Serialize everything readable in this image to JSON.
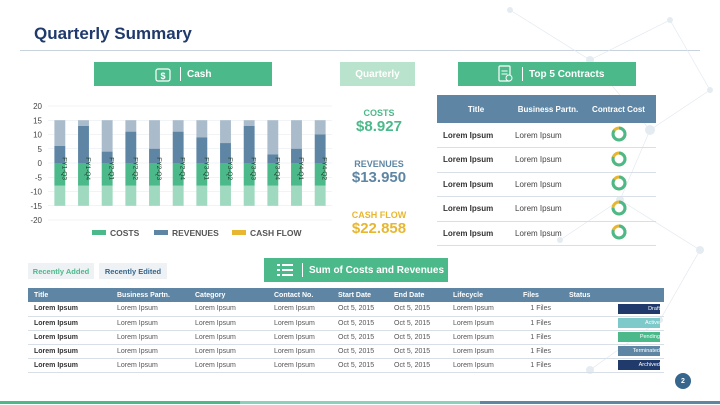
{
  "page": {
    "title": "Quarterly Summary",
    "page_number": "2"
  },
  "header_buttons": {
    "cash": "Cash",
    "quarterly": "Quarterly",
    "top_contracts": "Top 5 Contracts",
    "sum_costs": "Sum of Costs and Revenues"
  },
  "colors": {
    "costs": "#4cb98a",
    "revenues": "#5e86a4",
    "cashflow": "#e8b731",
    "accent_green": "#4cb98a",
    "table_header": "#5e86a4"
  },
  "kpis": [
    {
      "label": "COSTS",
      "value": "$8.927",
      "color": "#4cb98a"
    },
    {
      "label": "REVENUES",
      "value": "$13.950",
      "color": "#5e86a4"
    },
    {
      "label": "CASH FLOW",
      "value": "$22.858",
      "color": "#e8b731"
    }
  ],
  "chart_data": {
    "type": "bar",
    "categories": [
      "FY1-Q3",
      "FY1-Q4",
      "FY2-Q1",
      "FY2-Q2",
      "FY2-Q3",
      "FY2-Q4",
      "FY3-Q1",
      "FY3-Q2",
      "FY3-Q3",
      "FY3-Q4",
      "FY4-Q1",
      "FY4-Q2"
    ],
    "series": [
      {
        "name": "COSTS",
        "values": [
          -8,
          -8,
          -8,
          -8,
          -8,
          -8,
          -8,
          -8,
          -8,
          -8,
          -8,
          -8
        ]
      },
      {
        "name": "REVENUES",
        "values": [
          6,
          13,
          4,
          11,
          5,
          11,
          9,
          7,
          13,
          3,
          5,
          10
        ]
      },
      {
        "name": "CASH FLOW",
        "values": [
          -15,
          -15,
          -15,
          -15,
          -15,
          -15,
          -15,
          -15,
          -15,
          -15,
          -15,
          -15
        ]
      }
    ],
    "bar_top": [
      15,
      15,
      15,
      15,
      15,
      15,
      15,
      15,
      15,
      15,
      15,
      15
    ],
    "ylim": [
      -20,
      20
    ],
    "yticks": [
      "20",
      "15",
      "10",
      "5",
      "0",
      "-5",
      "-10",
      "-15",
      "-20"
    ],
    "legend": [
      "COSTS",
      "REVENUES",
      "CASH FLOW"
    ],
    "legend_position": "bottom"
  },
  "contracts": {
    "headers": [
      "Title",
      "Business Partn.",
      "Contract Cost"
    ],
    "rows": [
      {
        "title": "Lorem Ipsum",
        "partner": "Lorem Ipsum",
        "cost_fraction": 0.85
      },
      {
        "title": "Lorem Ipsum",
        "partner": "Lorem Ipsum",
        "cost_fraction": 0.8
      },
      {
        "title": "Lorem Ipsum",
        "partner": "Lorem Ipsum",
        "cost_fraction": 0.85
      },
      {
        "title": "Lorem Ipsum",
        "partner": "Lorem Ipsum",
        "cost_fraction": 0.75
      },
      {
        "title": "Lorem Ipsum",
        "partner": "Lorem Ipsum",
        "cost_fraction": 0.8
      }
    ]
  },
  "tabs": {
    "recently_added": "Recently Added",
    "recently_edited": "Recently Edited"
  },
  "summary": {
    "headers": [
      "Title",
      "Business  Partn.",
      "Category",
      "Contact  No.",
      "Start Date",
      "End Date",
      "Lifecycle",
      "Files",
      "Status"
    ],
    "rows": [
      {
        "title": "Lorem Ipsum",
        "partner": "Lorem Ipsum",
        "category": "Lorem Ipsum",
        "contact": "Lorem Ipsum",
        "start": "Oct 5, 2015",
        "end": "Oct 5, 2015",
        "lifecycle": "Lorem Ipsum",
        "files": "1 Files",
        "status": "Draft",
        "status_color": "#1f3a6b"
      },
      {
        "title": "Lorem Ipsum",
        "partner": "Lorem Ipsum",
        "category": "Lorem Ipsum",
        "contact": "Lorem Ipsum",
        "start": "Oct 5, 2015",
        "end": "Oct 5, 2015",
        "lifecycle": "Lorem Ipsum",
        "files": "1 Files",
        "status": "Active",
        "status_color": "#7ec9c9"
      },
      {
        "title": "Lorem Ipsum",
        "partner": "Lorem Ipsum",
        "category": "Lorem Ipsum",
        "contact": "Lorem Ipsum",
        "start": "Oct 5, 2015",
        "end": "Oct 5, 2015",
        "lifecycle": "Lorem Ipsum",
        "files": "1 Files",
        "status": "Pending",
        "status_color": "#4cb98a"
      },
      {
        "title": "Lorem Ipsum",
        "partner": "Lorem Ipsum",
        "category": "Lorem Ipsum",
        "contact": "Lorem Ipsum",
        "start": "Oct 5, 2015",
        "end": "Oct 5, 2015",
        "lifecycle": "Lorem Ipsum",
        "files": "1 Files",
        "status": "Terminated",
        "status_color": "#5e86a4"
      },
      {
        "title": "Lorem Ipsum",
        "partner": "Lorem Ipsum",
        "category": "Lorem Ipsum",
        "contact": "Lorem Ipsum",
        "start": "Oct 5, 2015",
        "end": "Oct 5, 2015",
        "lifecycle": "Lorem Ipsum",
        "files": "1 Files",
        "status": "Archived",
        "status_color": "#1f3a6b"
      }
    ]
  }
}
